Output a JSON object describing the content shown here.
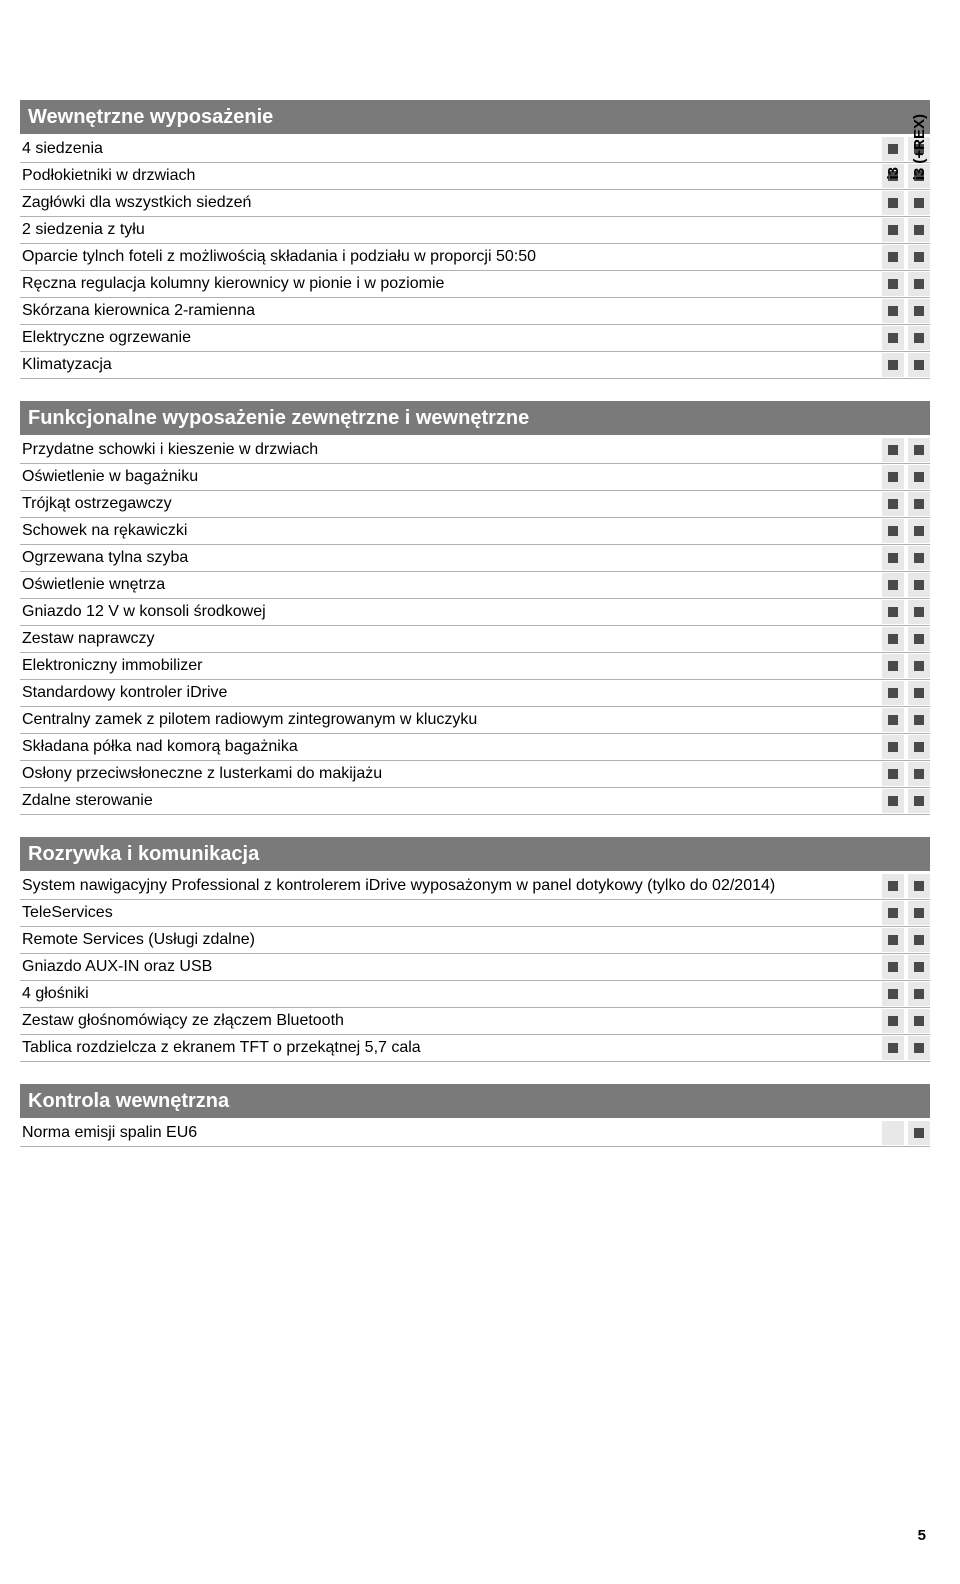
{
  "columns": {
    "col1": "i3",
    "col2": "i3 (+REX)"
  },
  "sections": [
    {
      "title": "Wewnętrzne wyposażenie",
      "rows": [
        {
          "label": "4 siedzenia",
          "marks": [
            true,
            true
          ]
        },
        {
          "label": "Podłokietniki w drzwiach",
          "marks": [
            true,
            true
          ]
        },
        {
          "label": "Zagłówki dla wszystkich siedzeń",
          "marks": [
            true,
            true
          ]
        },
        {
          "label": "2 siedzenia z tyłu",
          "marks": [
            true,
            true
          ]
        },
        {
          "label": "Oparcie tylnch foteli z możliwością składania i podziału w proporcji 50:50",
          "marks": [
            true,
            true
          ]
        },
        {
          "label": "Ręczna regulacja kolumny kierownicy w pionie i w poziomie",
          "marks": [
            true,
            true
          ]
        },
        {
          "label": "Skórzana kierownica 2-ramienna",
          "marks": [
            true,
            true
          ]
        },
        {
          "label": "Elektryczne ogrzewanie",
          "marks": [
            true,
            true
          ]
        },
        {
          "label": "Klimatyzacja",
          "marks": [
            true,
            true
          ]
        }
      ]
    },
    {
      "title": "Funkcjonalne wyposażenie zewnętrzne i wewnętrzne",
      "rows": [
        {
          "label": "Przydatne schowki i kieszenie w drzwiach",
          "marks": [
            true,
            true
          ]
        },
        {
          "label": "Oświetlenie w bagażniku",
          "marks": [
            true,
            true
          ]
        },
        {
          "label": "Trójkąt ostrzegawczy",
          "marks": [
            true,
            true
          ]
        },
        {
          "label": "Schowek na rękawiczki",
          "marks": [
            true,
            true
          ]
        },
        {
          "label": "Ogrzewana tylna szyba",
          "marks": [
            true,
            true
          ]
        },
        {
          "label": "Oświetlenie wnętrza",
          "marks": [
            true,
            true
          ]
        },
        {
          "label": "Gniazdo 12 V w konsoli środkowej",
          "marks": [
            true,
            true
          ]
        },
        {
          "label": "Zestaw naprawczy",
          "marks": [
            true,
            true
          ]
        },
        {
          "label": "Elektroniczny immobilizer",
          "marks": [
            true,
            true
          ]
        },
        {
          "label": "Standardowy kontroler iDrive",
          "marks": [
            true,
            true
          ]
        },
        {
          "label": "Centralny zamek z pilotem radiowym zintegrowanym w kluczyku",
          "marks": [
            true,
            true
          ]
        },
        {
          "label": "Składana półka nad komorą bagażnika",
          "marks": [
            true,
            true
          ]
        },
        {
          "label": "Osłony przeciwsłoneczne z lusterkami do makijażu",
          "marks": [
            true,
            true
          ]
        },
        {
          "label": "Zdalne sterowanie",
          "marks": [
            true,
            true
          ]
        }
      ]
    },
    {
      "title": "Rozrywka i komunikacja",
      "rows": [
        {
          "label": "System nawigacyjny Professional z kontrolerem iDrive wyposażonym w panel dotykowy (tylko do 02/2014)",
          "marks": [
            true,
            true
          ]
        },
        {
          "label": "TeleServices",
          "marks": [
            true,
            true
          ]
        },
        {
          "label": "Remote Services (Usługi zdalne)",
          "marks": [
            true,
            true
          ]
        },
        {
          "label": "Gniazdo AUX-IN oraz USB",
          "marks": [
            true,
            true
          ]
        },
        {
          "label": "4 głośniki",
          "marks": [
            true,
            true
          ]
        },
        {
          "label": "Zestaw głośnomówiący ze złączem Bluetooth",
          "marks": [
            true,
            true
          ]
        },
        {
          "label": "Tablica rozdzielcza z ekranem TFT o przekątnej 5,7 cala",
          "marks": [
            true,
            true
          ]
        }
      ]
    },
    {
      "title": "Kontrola wewnętrzna",
      "rows": [
        {
          "label": "Norma emisji spalin EU6",
          "marks": [
            false,
            true
          ]
        }
      ]
    }
  ],
  "pageNumber": "5",
  "style": {
    "headerBg": "#7a7a7a",
    "headerText": "#ffffff",
    "rowBorder": "#b0b0b0",
    "markCellBg": "#e8e8e8",
    "markSquare": "#4a4a4a",
    "bodyText": "#000000",
    "fontFamily": "Arial, Helvetica, sans-serif",
    "headerFontSize": 20,
    "rowFontSize": 16,
    "colHeaderFontSize": 15
  }
}
